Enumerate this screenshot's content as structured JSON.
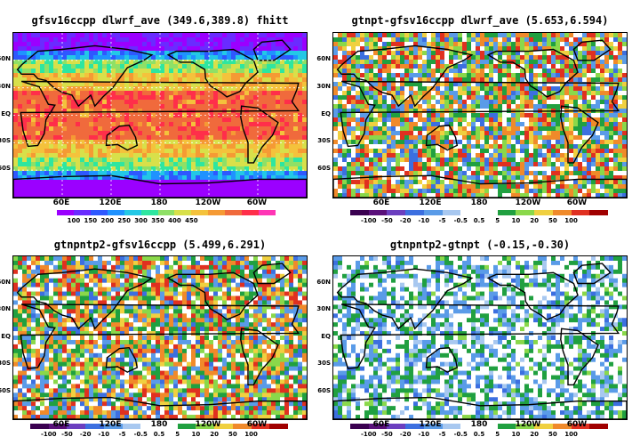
{
  "panels": [
    {
      "title": "gfsv16ccpp  dlwrf_ave  (349.6,389.8) fhitt",
      "field": "abs",
      "colorbar": {
        "colors": [
          "#9b00ff",
          "#6a2bff",
          "#2e58ff",
          "#1f92ff",
          "#23c8e6",
          "#2ee6a0",
          "#8fe066",
          "#d8e04a",
          "#f4c23c",
          "#f59a34",
          "#f06a3c",
          "#ff2e4a",
          "#ff35b5"
        ],
        "labels": [
          "100",
          "150",
          "200",
          "250",
          "300",
          "350",
          "400",
          "450"
        ]
      }
    },
    {
      "title": "gtnpt-gfsv16ccpp  dlwrf_ave  (5.653,6.594)",
      "field": "diff",
      "colorbar": {
        "colors": [
          "#3a0050",
          "#5a107a",
          "#6b3fbf",
          "#3c6fe0",
          "#5a9be8",
          "#a8c8f0",
          "#ffffff",
          "#ffffff",
          "#20a040",
          "#8ad84a",
          "#f0d040",
          "#f08a2a",
          "#e03020",
          "#a00000"
        ],
        "labels": [
          "-100",
          "-50",
          "-20",
          "-10",
          "-5",
          "-0.5",
          "0.5",
          "5",
          "10",
          "20",
          "50",
          "100"
        ]
      }
    },
    {
      "title": "gtnpntp2-gfsv16ccpp  (5.499,6.291)",
      "field": "diff",
      "colorbar": {
        "colors": [
          "#3a0050",
          "#5a107a",
          "#6b3fbf",
          "#3c6fe0",
          "#5a9be8",
          "#a8c8f0",
          "#ffffff",
          "#ffffff",
          "#20a040",
          "#8ad84a",
          "#f0d040",
          "#f08a2a",
          "#e03020",
          "#a00000"
        ],
        "labels": [
          "-100",
          "-50",
          "-20",
          "-10",
          "-5",
          "-0.5",
          "0.5",
          "5",
          "10",
          "20",
          "50",
          "100"
        ]
      }
    },
    {
      "title": "gtnpntp2-gtnpt  (-0.15,-0.30)",
      "field": "small",
      "colorbar": {
        "colors": [
          "#3a0050",
          "#5a107a",
          "#6b3fbf",
          "#3c6fe0",
          "#5a9be8",
          "#a8c8f0",
          "#ffffff",
          "#ffffff",
          "#20a040",
          "#8ad84a",
          "#f0d040",
          "#f08a2a",
          "#e03020",
          "#a00000"
        ],
        "labels": [
          "-100",
          "-50",
          "-20",
          "-10",
          "-5",
          "-0.5",
          "0.5",
          "5",
          "10",
          "20",
          "50",
          "100"
        ]
      }
    }
  ],
  "lat_labels": [
    "60N",
    "30N",
    "EQ",
    "30S",
    "60S"
  ],
  "lon_labels": [
    "60E",
    "120E",
    "180",
    "120W",
    "60W"
  ]
}
